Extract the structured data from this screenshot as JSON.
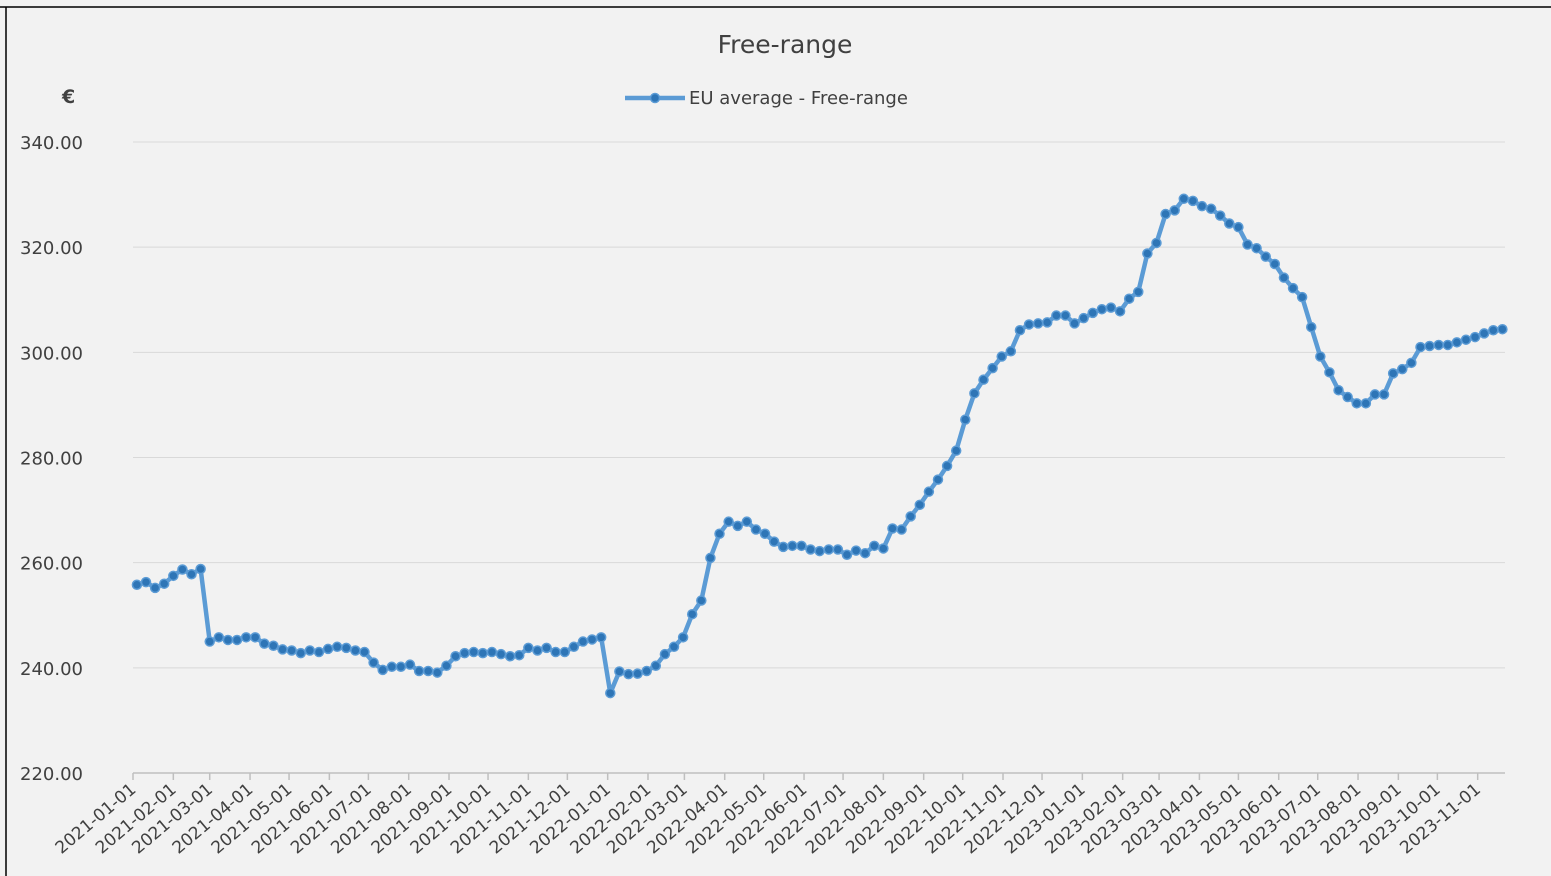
{
  "chart_data": {
    "type": "line",
    "title": "Free-range",
    "y_unit_label": "€",
    "legend_position": "top",
    "grid": true,
    "x": [
      "2021-01-04",
      "2021-01-11",
      "2021-01-18",
      "2021-01-25",
      "2021-02-01",
      "2021-02-08",
      "2021-02-15",
      "2021-02-22",
      "2021-03-01",
      "2021-03-08",
      "2021-03-15",
      "2021-03-22",
      "2021-03-29",
      "2021-04-05",
      "2021-04-12",
      "2021-04-19",
      "2021-04-26",
      "2021-05-03",
      "2021-05-10",
      "2021-05-17",
      "2021-05-24",
      "2021-05-31",
      "2021-06-07",
      "2021-06-14",
      "2021-06-21",
      "2021-06-28",
      "2021-07-05",
      "2021-07-12",
      "2021-07-19",
      "2021-07-26",
      "2021-08-02",
      "2021-08-09",
      "2021-08-16",
      "2021-08-23",
      "2021-08-30",
      "2021-09-06",
      "2021-09-13",
      "2021-09-20",
      "2021-09-27",
      "2021-10-04",
      "2021-10-11",
      "2021-10-18",
      "2021-10-25",
      "2021-11-01",
      "2021-11-08",
      "2021-11-15",
      "2021-11-22",
      "2021-11-29",
      "2021-12-06",
      "2021-12-13",
      "2021-12-20",
      "2021-12-27",
      "2022-01-03",
      "2022-01-10",
      "2022-01-17",
      "2022-01-24",
      "2022-01-31",
      "2022-02-07",
      "2022-02-14",
      "2022-02-21",
      "2022-02-28",
      "2022-03-07",
      "2022-03-14",
      "2022-03-21",
      "2022-03-28",
      "2022-04-04",
      "2022-04-11",
      "2022-04-18",
      "2022-04-25",
      "2022-05-02",
      "2022-05-09",
      "2022-05-16",
      "2022-05-23",
      "2022-05-30",
      "2022-06-06",
      "2022-06-13",
      "2022-06-20",
      "2022-06-27",
      "2022-07-04",
      "2022-07-11",
      "2022-07-18",
      "2022-07-25",
      "2022-08-01",
      "2022-08-08",
      "2022-08-15",
      "2022-08-22",
      "2022-08-29",
      "2022-09-05",
      "2022-09-12",
      "2022-09-19",
      "2022-09-26",
      "2022-10-03",
      "2022-10-10",
      "2022-10-17",
      "2022-10-24",
      "2022-10-31",
      "2022-11-07",
      "2022-11-14",
      "2022-11-21",
      "2022-11-28",
      "2022-12-05",
      "2022-12-12",
      "2022-12-19",
      "2022-12-26",
      "2023-01-02",
      "2023-01-09",
      "2023-01-16",
      "2023-01-23",
      "2023-01-30",
      "2023-02-06",
      "2023-02-13",
      "2023-02-20",
      "2023-02-27",
      "2023-03-06",
      "2023-03-13",
      "2023-03-20",
      "2023-03-27",
      "2023-04-03",
      "2023-04-10",
      "2023-04-17",
      "2023-04-24",
      "2023-05-01",
      "2023-05-08",
      "2023-05-15",
      "2023-05-22",
      "2023-05-29",
      "2023-06-05",
      "2023-06-12",
      "2023-06-19",
      "2023-06-26",
      "2023-07-03",
      "2023-07-10",
      "2023-07-17",
      "2023-07-24",
      "2023-07-31",
      "2023-08-07",
      "2023-08-14",
      "2023-08-21",
      "2023-08-28",
      "2023-09-04",
      "2023-09-11",
      "2023-09-18",
      "2023-09-25",
      "2023-10-02",
      "2023-10-09",
      "2023-10-16",
      "2023-10-23",
      "2023-10-30",
      "2023-11-06",
      "2023-11-13",
      "2023-11-20"
    ],
    "series": [
      {
        "name": "EU average - Free-range",
        "color": "#5b9bd5",
        "marker_color": "#2e75b6",
        "values": [
          255.8,
          256.3,
          255.2,
          256.0,
          257.5,
          258.7,
          257.8,
          258.8,
          245.0,
          245.8,
          245.3,
          245.3,
          245.8,
          245.8,
          244.6,
          244.2,
          243.5,
          243.3,
          242.8,
          243.3,
          243.0,
          243.6,
          244.0,
          243.8,
          243.3,
          243.0,
          241.0,
          239.6,
          240.2,
          240.2,
          240.6,
          239.4,
          239.4,
          239.1,
          240.4,
          242.2,
          242.8,
          243.0,
          242.8,
          243.0,
          242.6,
          242.2,
          242.4,
          243.8,
          243.3,
          243.8,
          243.0,
          243.0,
          244.0,
          245.0,
          245.4,
          245.8,
          235.2,
          239.3,
          238.8,
          238.9,
          239.4,
          240.4,
          242.6,
          244.0,
          245.8,
          250.2,
          252.8,
          260.9,
          265.5,
          267.8,
          267.0,
          267.8,
          266.3,
          265.5,
          264.0,
          263.0,
          263.2,
          263.2,
          262.5,
          262.2,
          262.5,
          262.5,
          261.5,
          262.3,
          261.8,
          263.2,
          262.7,
          266.5,
          266.3,
          268.8,
          271.0,
          273.5,
          275.8,
          278.4,
          281.3,
          287.2,
          292.2,
          294.8,
          297.0,
          299.2,
          300.2,
          304.2,
          305.3,
          305.5,
          305.7,
          307.0,
          307.0,
          305.5,
          306.5,
          307.5,
          308.2,
          308.5,
          307.8,
          310.2,
          311.5,
          318.8,
          320.8,
          326.3,
          327.0,
          329.2,
          328.8,
          327.8,
          327.3,
          326.0,
          324.5,
          323.8,
          320.5,
          319.8,
          318.2,
          316.8,
          314.2,
          312.2,
          310.5,
          304.8,
          299.2,
          296.2,
          292.8,
          291.5,
          290.3,
          290.3,
          292.0,
          292.0,
          296.0,
          296.8,
          298.0,
          301.0,
          301.2,
          301.4,
          301.4,
          301.9,
          302.4,
          302.9,
          303.6,
          304.2,
          304.4
        ]
      }
    ],
    "xlim": [
      "2021-01-01",
      "2023-11-22"
    ],
    "xticks": [
      "2021-01-01",
      "2021-02-01",
      "2021-03-01",
      "2021-04-01",
      "2021-05-01",
      "2021-06-01",
      "2021-07-01",
      "2021-08-01",
      "2021-09-01",
      "2021-10-01",
      "2021-11-01",
      "2021-12-01",
      "2022-01-01",
      "2022-02-01",
      "2022-03-01",
      "2022-04-01",
      "2022-05-01",
      "2022-06-01",
      "2022-07-01",
      "2022-08-01",
      "2022-09-01",
      "2022-10-01",
      "2022-11-01",
      "2022-12-01",
      "2023-01-01",
      "2023-02-01",
      "2023-03-01",
      "2023-04-01",
      "2023-05-01",
      "2023-06-01",
      "2023-07-01",
      "2023-08-01",
      "2023-09-01",
      "2023-10-01",
      "2023-11-01"
    ],
    "ylim": [
      220,
      340
    ],
    "yticks": [
      {
        "value": 220,
        "label": "220.00"
      },
      {
        "value": 240,
        "label": "240.00"
      },
      {
        "value": 260,
        "label": "260.00"
      },
      {
        "value": 280,
        "label": "280.00"
      },
      {
        "value": 300,
        "label": "300.00"
      },
      {
        "value": 320,
        "label": "320.00"
      },
      {
        "value": 340,
        "label": "340.00"
      }
    ]
  }
}
